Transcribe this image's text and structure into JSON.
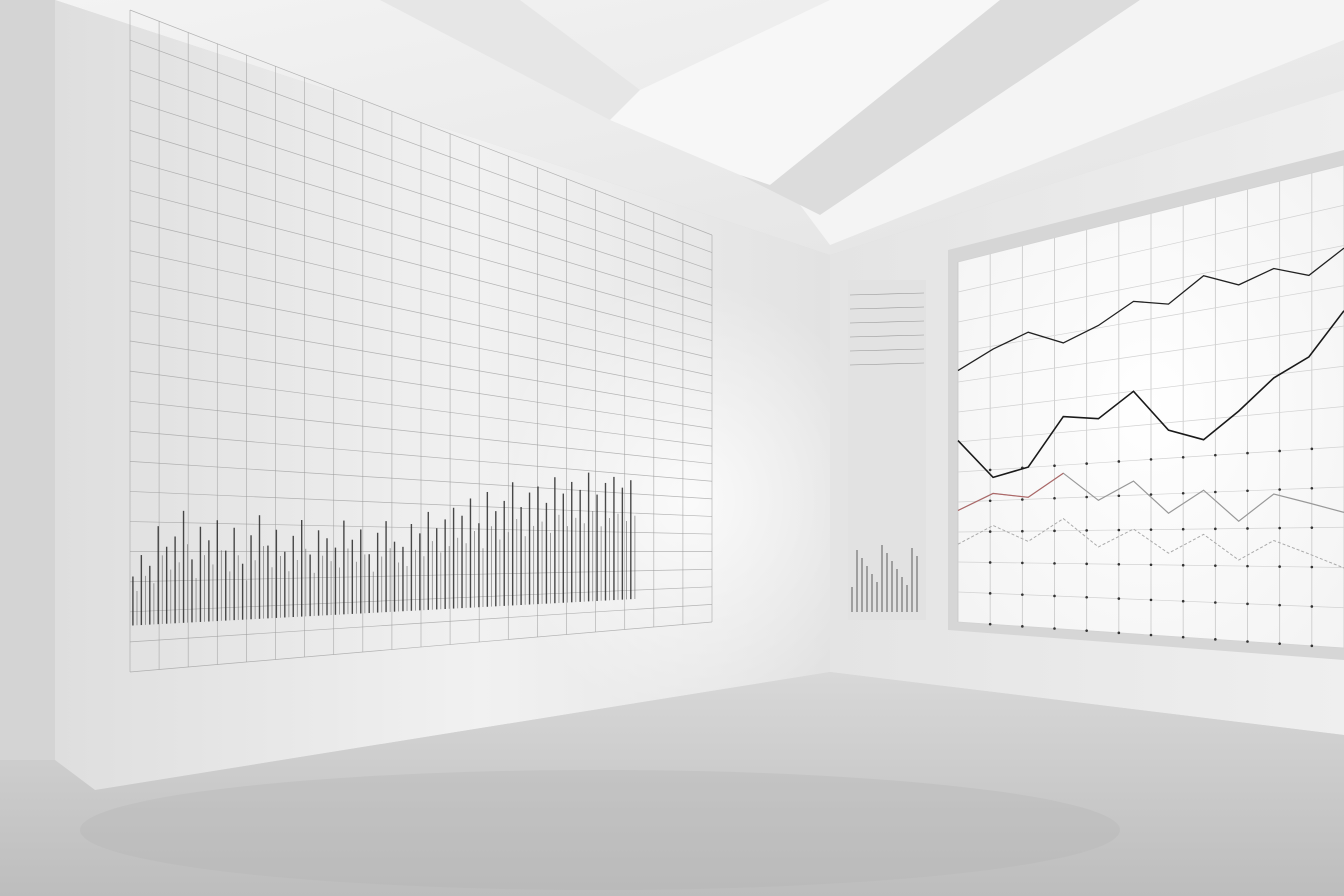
{
  "scene": {
    "description_free": true,
    "colors": {
      "wall_left": "#e9e9e9",
      "wall_right": "#ececec",
      "ceiling": "#f2f2f2",
      "floor": "#cdcdcd",
      "grid_line": "#9a9a9a",
      "plot_ink": "#2a2a2a",
      "window_glow": "#ffffff",
      "accent_red": "#b85050"
    }
  },
  "left_wall_chart": {
    "bar_heights": [
      0.35,
      0.5,
      0.42,
      0.7,
      0.55,
      0.62,
      0.8,
      0.45,
      0.68,
      0.58,
      0.72,
      0.5,
      0.66,
      0.4,
      0.6,
      0.74,
      0.52,
      0.63,
      0.47,
      0.58,
      0.69,
      0.44,
      0.61,
      0.55,
      0.48,
      0.67,
      0.53,
      0.6,
      0.42,
      0.57,
      0.65,
      0.5,
      0.46,
      0.62,
      0.55,
      0.7,
      0.58,
      0.64,
      0.72,
      0.66,
      0.78,
      0.6,
      0.82,
      0.68,
      0.75,
      0.88,
      0.7,
      0.8,
      0.84,
      0.72,
      0.9,
      0.78,
      0.86,
      0.8,
      0.92,
      0.76,
      0.84,
      0.88,
      0.8,
      0.85
    ]
  },
  "window_chart": {
    "series": [
      {
        "values": [
          0.72,
          0.78,
          0.82,
          0.76,
          0.8,
          0.86,
          0.83,
          0.9,
          0.85,
          0.88,
          0.84,
          0.9
        ]
      },
      {
        "values": [
          0.45,
          0.3,
          0.33,
          0.5,
          0.48,
          0.56,
          0.42,
          0.38,
          0.46,
          0.55,
          0.6,
          0.72
        ]
      },
      {
        "values": [
          0.18,
          0.24,
          0.22,
          0.3,
          0.2,
          0.26,
          0.15,
          0.22,
          0.12,
          0.2,
          0.17,
          0.14
        ]
      },
      {
        "values": [
          0.05,
          0.12,
          0.06,
          0.14,
          0.04,
          0.1,
          0.02,
          0.08,
          0.0,
          0.06,
          0.02,
          -0.02
        ]
      }
    ]
  }
}
